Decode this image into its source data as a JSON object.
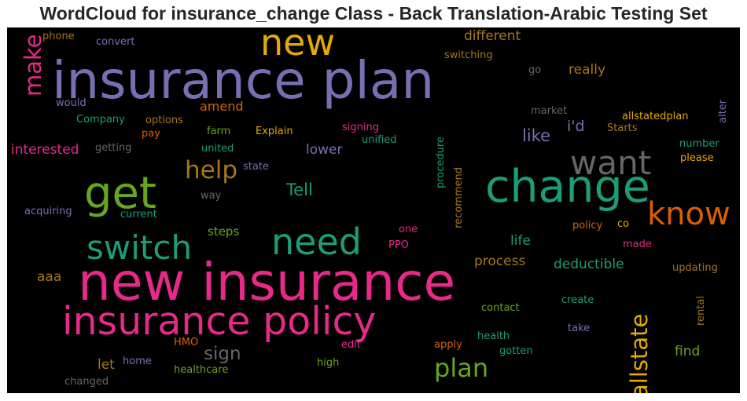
{
  "title": "WordCloud for insurance_change Class - Back Translation-Arabic Testing Set",
  "palette": {
    "background": "#000000",
    "pink": "#e7298a",
    "purple": "#7570b3",
    "teal": "#1b9e77",
    "orange": "#d95f02",
    "green": "#66a61e",
    "gold": "#e6ab02",
    "brown": "#a6761d",
    "gray": "#666666"
  },
  "words": [
    {
      "text": "insurance plan",
      "color": "#7570b3"
    },
    {
      "text": "new insurance",
      "color": "#e7298a"
    },
    {
      "text": "insurance policy",
      "color": "#e7298a"
    },
    {
      "text": "change",
      "color": "#1b9e77"
    },
    {
      "text": "new",
      "color": "#e6ab02"
    },
    {
      "text": "get",
      "color": "#66a61e"
    },
    {
      "text": "want",
      "color": "#666666"
    },
    {
      "text": "know",
      "color": "#d95f02"
    },
    {
      "text": "need",
      "color": "#1b9e77"
    },
    {
      "text": "switch",
      "color": "#1b9e77"
    },
    {
      "text": "help",
      "color": "#a6761d"
    },
    {
      "text": "make",
      "color": "#e7298a"
    },
    {
      "text": "plan",
      "color": "#66a61e"
    },
    {
      "text": "allstate",
      "color": "#e6ab02"
    },
    {
      "text": "Tell",
      "color": "#1b9e77"
    },
    {
      "text": "sign",
      "color": "#666666"
    },
    {
      "text": "like",
      "color": "#7570b3"
    },
    {
      "text": "different",
      "color": "#a6761d"
    },
    {
      "text": "really",
      "color": "#a6761d"
    },
    {
      "text": "interested",
      "color": "#e7298a"
    },
    {
      "text": "lower",
      "color": "#7570b3"
    },
    {
      "text": "i'd",
      "color": "#7570b3"
    },
    {
      "text": "amend",
      "color": "#d95f02"
    },
    {
      "text": "deductible",
      "color": "#1b9e77"
    },
    {
      "text": "process",
      "color": "#a6761d"
    },
    {
      "text": "life",
      "color": "#1b9e77"
    },
    {
      "text": "steps",
      "color": "#66a61e"
    },
    {
      "text": "find",
      "color": "#66a61e"
    },
    {
      "text": "let",
      "color": "#a6761d"
    },
    {
      "text": "aaa",
      "color": "#a6761d"
    },
    {
      "text": "phone",
      "color": "#a6761d"
    },
    {
      "text": "convert",
      "color": "#7570b3"
    },
    {
      "text": "switching",
      "color": "#a6761d"
    },
    {
      "text": "go",
      "color": "#666666"
    },
    {
      "text": "alter",
      "color": "#7570b3"
    },
    {
      "text": "would",
      "color": "#7570b3"
    },
    {
      "text": "market",
      "color": "#666666"
    },
    {
      "text": "allstatedplan",
      "color": "#e6ab02"
    },
    {
      "text": "Company",
      "color": "#1b9e77"
    },
    {
      "text": "options",
      "color": "#a6761d"
    },
    {
      "text": "farm",
      "color": "#66a61e"
    },
    {
      "text": "Explain",
      "color": "#e6ab02"
    },
    {
      "text": "signing",
      "color": "#e7298a"
    },
    {
      "text": "Starts",
      "color": "#a6761d"
    },
    {
      "text": "pay",
      "color": "#d95f02"
    },
    {
      "text": "unified",
      "color": "#1b9e77"
    },
    {
      "text": "procedure",
      "color": "#1b9e77"
    },
    {
      "text": "number",
      "color": "#1b9e77"
    },
    {
      "text": "getting",
      "color": "#666666"
    },
    {
      "text": "united",
      "color": "#1b9e77"
    },
    {
      "text": "please",
      "color": "#e6ab02"
    },
    {
      "text": "state",
      "color": "#7570b3"
    },
    {
      "text": "recommend",
      "color": "#a6761d"
    },
    {
      "text": "way",
      "color": "#666666"
    },
    {
      "text": "acquiring",
      "color": "#7570b3"
    },
    {
      "text": "current",
      "color": "#1b9e77"
    },
    {
      "text": "one",
      "color": "#e7298a"
    },
    {
      "text": "policy",
      "color": "#d95f02"
    },
    {
      "text": "co",
      "color": "#e6ab02"
    },
    {
      "text": "PPO",
      "color": "#e7298a"
    },
    {
      "text": "made",
      "color": "#e7298a"
    },
    {
      "text": "updating",
      "color": "#a6761d"
    },
    {
      "text": "contact",
      "color": "#66a61e"
    },
    {
      "text": "create",
      "color": "#1b9e77"
    },
    {
      "text": "rental",
      "color": "#a6761d"
    },
    {
      "text": "take",
      "color": "#7570b3"
    },
    {
      "text": "HMO",
      "color": "#d95f02"
    },
    {
      "text": "edit",
      "color": "#e7298a"
    },
    {
      "text": "apply",
      "color": "#d95f02"
    },
    {
      "text": "health",
      "color": "#1b9e77"
    },
    {
      "text": "gotten",
      "color": "#1b9e77"
    },
    {
      "text": "home",
      "color": "#7570b3"
    },
    {
      "text": "healthcare",
      "color": "#66a61e"
    },
    {
      "text": "high",
      "color": "#66a61e"
    },
    {
      "text": "changed",
      "color": "#666666"
    }
  ]
}
